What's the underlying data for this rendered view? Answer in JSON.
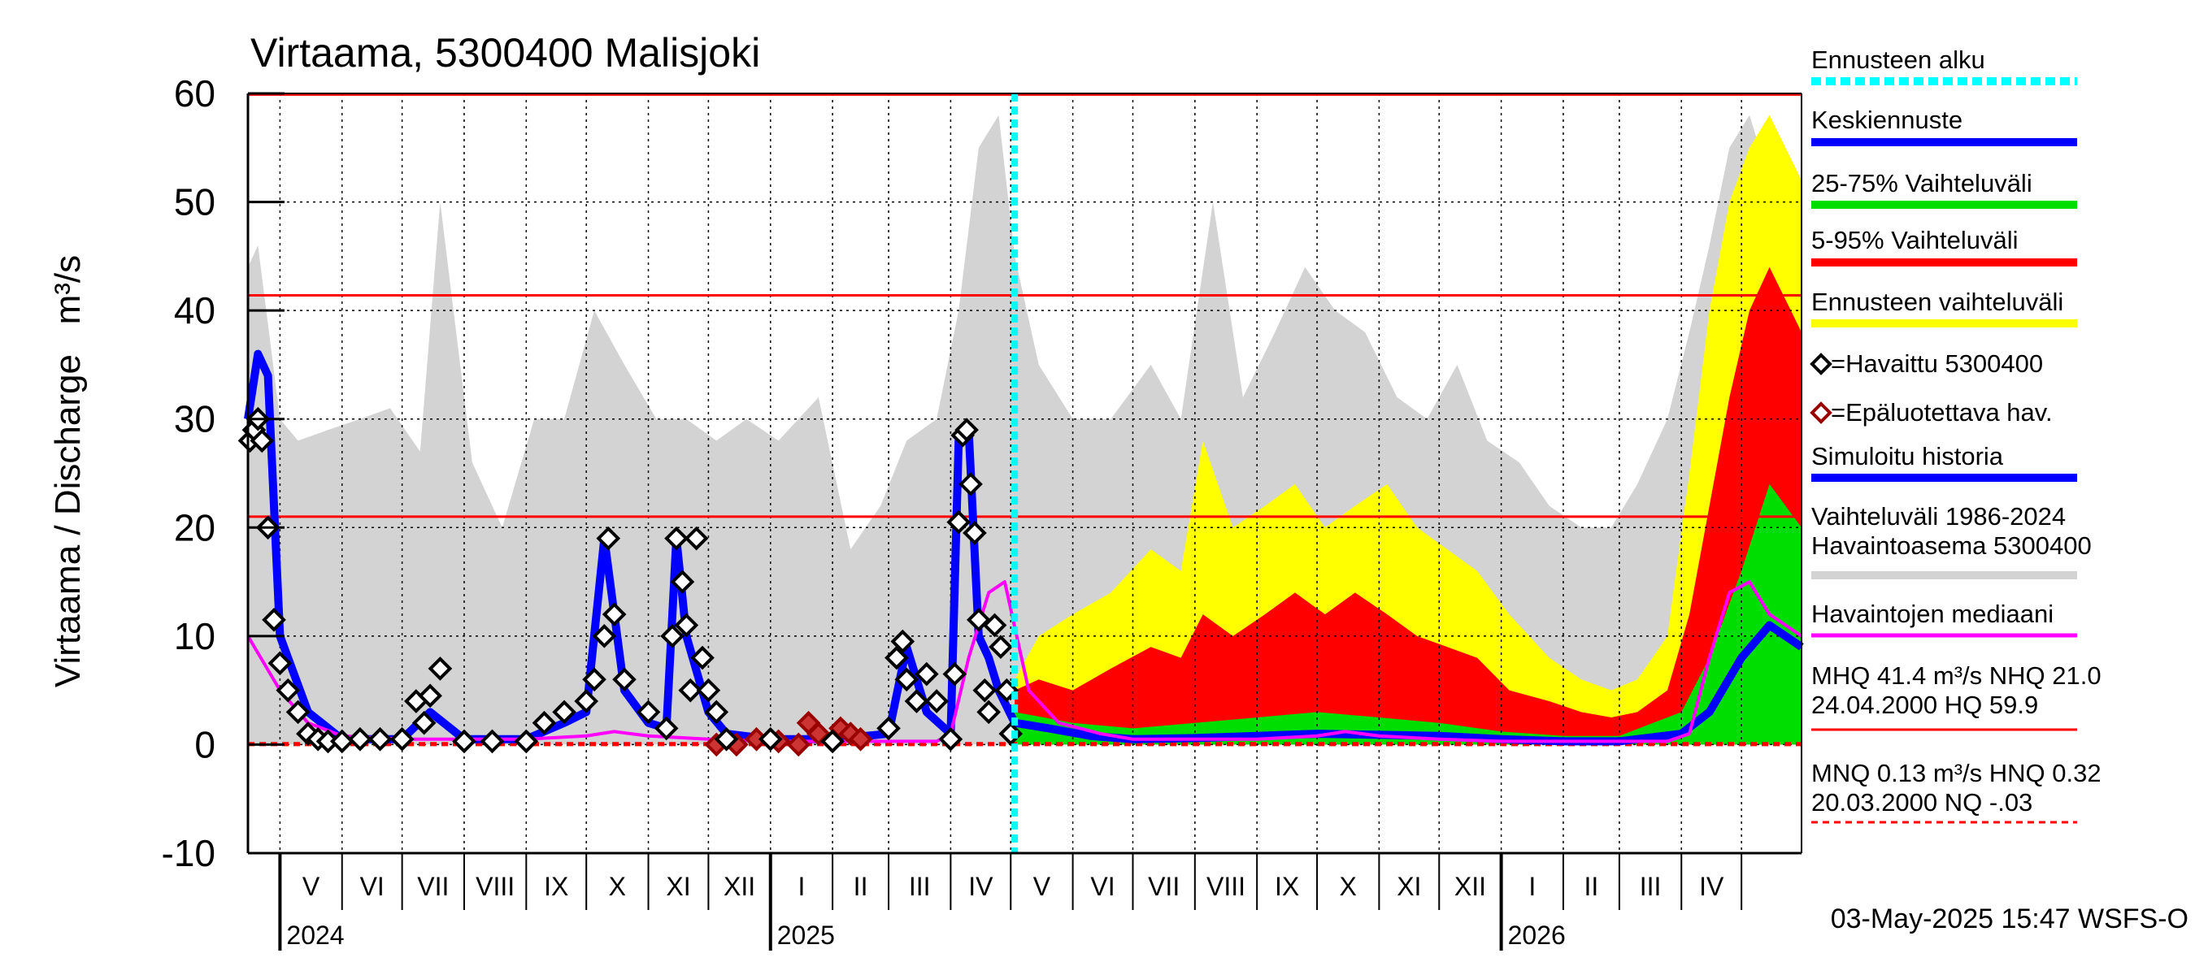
{
  "chart_data": {
    "type": "line",
    "title": "Virtaama, 5300400 Malisjoki",
    "ylabel": "Virtaama / Discharge   m³/s",
    "ylim": [
      -10,
      60
    ],
    "yticks": [
      "-10",
      "0",
      "10",
      "20",
      "30",
      "40",
      "50",
      "60"
    ],
    "ytick_values": [
      -10,
      0,
      10,
      20,
      30,
      40,
      50,
      60
    ],
    "grid": true,
    "legend_position": "right",
    "x_range": [
      "2024-04-15",
      "2026-05-31"
    ],
    "months": [
      {
        "label": "V",
        "date": "2024-05-01"
      },
      {
        "label": "VI",
        "date": "2024-06-01"
      },
      {
        "label": "VII",
        "date": "2024-07-01"
      },
      {
        "label": "VIII",
        "date": "2024-08-01"
      },
      {
        "label": "IX",
        "date": "2024-09-01"
      },
      {
        "label": "X",
        "date": "2024-10-01"
      },
      {
        "label": "XI",
        "date": "2024-11-01"
      },
      {
        "label": "XII",
        "date": "2024-12-01"
      },
      {
        "label": "I",
        "date": "2025-01-01"
      },
      {
        "label": "II",
        "date": "2025-02-01"
      },
      {
        "label": "III",
        "date": "2025-03-01"
      },
      {
        "label": "IV",
        "date": "2025-04-01"
      },
      {
        "label": "V",
        "date": "2025-05-01"
      },
      {
        "label": "VI",
        "date": "2025-06-01"
      },
      {
        "label": "VII",
        "date": "2025-07-01"
      },
      {
        "label": "VIII",
        "date": "2025-08-01"
      },
      {
        "label": "IX",
        "date": "2025-09-01"
      },
      {
        "label": "X",
        "date": "2025-10-01"
      },
      {
        "label": "XI",
        "date": "2025-11-01"
      },
      {
        "label": "XII",
        "date": "2025-12-01"
      },
      {
        "label": "I",
        "date": "2026-01-01"
      },
      {
        "label": "II",
        "date": "2026-02-01"
      },
      {
        "label": "III",
        "date": "2026-03-01"
      },
      {
        "label": "IV",
        "date": "2026-04-01"
      },
      {
        "label": "",
        "date": "2026-05-01"
      }
    ],
    "years": [
      {
        "label": "2024",
        "date": "2024-05-01"
      },
      {
        "label": "2025",
        "date": "2025-01-01"
      },
      {
        "label": "2026",
        "date": "2026-01-01"
      }
    ],
    "forecast_start": "2025-05-03",
    "reference_lines": [
      {
        "value": 59.9,
        "color": "#ff0000",
        "style": "solid"
      },
      {
        "value": 41.4,
        "color": "#ff0000",
        "style": "solid"
      },
      {
        "value": 21.0,
        "color": "#ff0000",
        "style": "solid"
      },
      {
        "value": 0.13,
        "color": "#ff0000",
        "style": "dashed"
      },
      {
        "value": -0.03,
        "color": "#ff0000",
        "style": "dashed"
      }
    ],
    "historical_range_envelope": {
      "color": "#d3d3d3",
      "x": [
        "2024-04-15",
        "2024-04-20",
        "2024-05-01",
        "2024-05-10",
        "2024-05-25",
        "2024-06-10",
        "2024-06-25",
        "2024-07-10",
        "2024-07-20",
        "2024-08-05",
        "2024-08-20",
        "2024-09-05",
        "2024-09-20",
        "2024-10-05",
        "2024-10-20",
        "2024-11-05",
        "2024-11-20",
        "2024-12-05",
        "2024-12-20",
        "2025-01-05",
        "2025-01-25",
        "2025-02-10",
        "2025-02-25",
        "2025-03-10",
        "2025-03-25",
        "2025-04-05",
        "2025-04-15",
        "2025-04-25",
        "2025-05-03",
        "2025-05-15",
        "2025-06-01",
        "2025-06-20",
        "2025-07-10",
        "2025-07-25",
        "2025-08-10",
        "2025-08-25",
        "2025-09-10",
        "2025-09-25",
        "2025-10-10",
        "2025-10-25",
        "2025-11-10",
        "2025-11-25",
        "2025-12-10",
        "2025-12-25",
        "2026-01-10",
        "2026-01-25",
        "2026-02-10",
        "2026-02-25",
        "2026-03-10",
        "2026-03-25",
        "2026-04-05",
        "2026-04-15",
        "2026-04-25",
        "2026-05-05",
        "2026-05-15",
        "2026-05-31"
      ],
      "y": [
        44,
        46,
        30,
        28,
        29,
        30,
        31,
        27,
        50,
        26,
        20,
        30,
        30,
        40,
        35,
        30,
        30,
        28,
        30,
        28,
        32,
        18,
        22,
        28,
        30,
        40,
        55,
        58,
        45,
        35,
        30,
        30,
        35,
        30,
        50,
        32,
        38,
        44,
        40,
        38,
        32,
        30,
        35,
        28,
        26,
        22,
        20,
        20,
        24,
        30,
        38,
        46,
        55,
        58,
        52,
        40
      ]
    },
    "series": [
      {
        "name": "Ennusteen vaihteluväli",
        "color": "#ffff00",
        "x": [
          "2025-05-03",
          "2025-05-15",
          "2025-06-01",
          "2025-06-20",
          "2025-07-10",
          "2025-07-25",
          "2025-08-05",
          "2025-08-20",
          "2025-09-05",
          "2025-09-20",
          "2025-10-05",
          "2025-10-20",
          "2025-11-05",
          "2025-11-20",
          "2025-12-05",
          "2025-12-20",
          "2026-01-05",
          "2026-01-25",
          "2026-02-10",
          "2026-02-25",
          "2026-03-10",
          "2026-03-25",
          "2026-04-05",
          "2026-04-15",
          "2026-04-25",
          "2026-05-05",
          "2026-05-15",
          "2026-05-31"
        ],
        "y": [
          6,
          10,
          12,
          14,
          18,
          16,
          28,
          20,
          22,
          24,
          20,
          22,
          24,
          20,
          18,
          16,
          12,
          8,
          6,
          5,
          6,
          10,
          25,
          40,
          50,
          55,
          58,
          52
        ]
      },
      {
        "name": "5-95% Vaihteluväli",
        "color": "#ff0000",
        "x": [
          "2025-05-03",
          "2025-05-15",
          "2025-06-01",
          "2025-06-20",
          "2025-07-10",
          "2025-07-25",
          "2025-08-05",
          "2025-08-20",
          "2025-09-05",
          "2025-09-20",
          "2025-10-05",
          "2025-10-20",
          "2025-11-05",
          "2025-11-20",
          "2025-12-05",
          "2025-12-20",
          "2026-01-05",
          "2026-01-25",
          "2026-02-10",
          "2026-02-25",
          "2026-03-10",
          "2026-03-25",
          "2026-04-05",
          "2026-04-15",
          "2026-04-25",
          "2026-05-05",
          "2026-05-15",
          "2026-05-31"
        ],
        "y": [
          5,
          6,
          5,
          7,
          9,
          8,
          12,
          10,
          12,
          14,
          12,
          14,
          12,
          10,
          9,
          8,
          5,
          4,
          3,
          2.5,
          3,
          5,
          12,
          22,
          32,
          40,
          44,
          38
        ]
      },
      {
        "name": "25-75% Vaihteluväli",
        "color": "#00dd00",
        "x": [
          "2025-05-03",
          "2025-06-01",
          "2025-07-01",
          "2025-08-01",
          "2025-09-01",
          "2025-10-01",
          "2025-11-01",
          "2025-12-01",
          "2026-01-01",
          "2026-02-01",
          "2026-03-01",
          "2026-04-01",
          "2026-04-15",
          "2026-05-01",
          "2026-05-15",
          "2026-05-31"
        ],
        "y": [
          3,
          2,
          1.5,
          2,
          2.5,
          3,
          2.5,
          2,
          1.2,
          0.8,
          0.8,
          3,
          8,
          16,
          24,
          20
        ]
      },
      {
        "name": "Keskiennuste",
        "color": "#0000ff",
        "x": [
          "2025-05-03",
          "2025-05-20",
          "2025-06-10",
          "2025-07-01",
          "2025-08-01",
          "2025-09-01",
          "2025-10-01",
          "2025-11-01",
          "2025-12-01",
          "2026-01-01",
          "2026-02-01",
          "2026-03-01",
          "2026-04-01",
          "2026-04-15",
          "2026-05-01",
          "2026-05-15",
          "2026-05-31"
        ],
        "y": [
          2,
          1.5,
          0.8,
          0.5,
          0.6,
          0.8,
          1,
          0.9,
          0.8,
          0.5,
          0.3,
          0.3,
          1,
          3,
          8,
          11,
          9
        ]
      },
      {
        "name": "Simuloitu historia",
        "color": "#0000ff",
        "x": [
          "2024-04-15",
          "2024-04-20",
          "2024-04-25",
          "2024-05-01",
          "2024-05-05",
          "2024-05-15",
          "2024-06-01",
          "2024-07-01",
          "2024-07-15",
          "2024-08-01",
          "2024-09-01",
          "2024-09-20",
          "2024-10-01",
          "2024-10-10",
          "2024-10-20",
          "2024-11-01",
          "2024-11-10",
          "2024-11-15",
          "2024-11-20",
          "2024-12-01",
          "2024-12-10",
          "2025-01-01",
          "2025-02-01",
          "2025-03-01",
          "2025-03-10",
          "2025-03-20",
          "2025-04-01",
          "2025-04-05",
          "2025-04-10",
          "2025-04-15",
          "2025-04-20",
          "2025-04-25",
          "2025-05-03"
        ],
        "y": [
          30,
          36,
          34,
          10,
          8,
          3,
          0.5,
          0.5,
          3,
          0.5,
          0.5,
          2,
          3,
          19,
          5,
          2,
          1.5,
          19,
          10,
          3,
          1,
          0.5,
          0.5,
          1,
          9,
          3,
          1,
          28,
          29,
          10,
          8,
          5,
          2
        ]
      },
      {
        "name": "Havaintojen mediaani",
        "color": "#ff00ff",
        "x": [
          "2024-04-15",
          "2024-05-01",
          "2024-05-15",
          "2024-06-01",
          "2024-07-01",
          "2024-08-01",
          "2024-09-01",
          "2024-10-01",
          "2024-10-15",
          "2024-11-01",
          "2024-12-01",
          "2025-01-01",
          "2025-02-01",
          "2025-03-01",
          "2025-03-25",
          "2025-04-01",
          "2025-04-10",
          "2025-04-20",
          "2025-04-28",
          "2025-05-10",
          "2025-05-25",
          "2025-06-15",
          "2025-07-01",
          "2025-08-01",
          "2025-09-01",
          "2025-10-01",
          "2025-10-15",
          "2025-11-01",
          "2025-12-01",
          "2026-01-01",
          "2026-02-01",
          "2026-03-01",
          "2026-03-25",
          "2026-04-05",
          "2026-04-15",
          "2026-04-25",
          "2026-05-05",
          "2026-05-15",
          "2026-05-31"
        ],
        "y": [
          10,
          5,
          2,
          0.8,
          0.5,
          0.5,
          0.5,
          0.8,
          1.2,
          0.8,
          0.5,
          0.3,
          0.3,
          0.3,
          0.3,
          1,
          8,
          14,
          15,
          5,
          2,
          1,
          0.5,
          0.5,
          0.5,
          0.8,
          1.2,
          0.8,
          0.5,
          0.3,
          0.3,
          0.3,
          0.3,
          1,
          8,
          14,
          15,
          12,
          10
        ]
      }
    ],
    "observations": {
      "name": "=Havaittu 5300400",
      "x": [
        "2024-04-16",
        "2024-04-18",
        "2024-04-20",
        "2024-04-22",
        "2024-04-25",
        "2024-04-28",
        "2024-05-01",
        "2024-05-05",
        "2024-05-10",
        "2024-05-15",
        "2024-05-20",
        "2024-05-25",
        "2024-06-01",
        "2024-06-10",
        "2024-06-20",
        "2024-07-01",
        "2024-07-08",
        "2024-07-12",
        "2024-07-15",
        "2024-07-20",
        "2024-08-01",
        "2024-08-15",
        "2024-09-01",
        "2024-09-10",
        "2024-09-20",
        "2024-10-01",
        "2024-10-05",
        "2024-10-10",
        "2024-10-12",
        "2024-10-15",
        "2024-10-20",
        "2024-11-01",
        "2024-11-10",
        "2024-11-13",
        "2024-11-15",
        "2024-11-18",
        "2024-11-20",
        "2024-11-22",
        "2024-11-25",
        "2024-11-28",
        "2024-12-01",
        "2024-12-05",
        "2024-12-10",
        "2025-01-01",
        "2025-02-01",
        "2025-03-01",
        "2025-03-05",
        "2025-03-08",
        "2025-03-10",
        "2025-03-15",
        "2025-03-20",
        "2025-03-25",
        "2025-04-01",
        "2025-04-03",
        "2025-04-05",
        "2025-04-07",
        "2025-04-09",
        "2025-04-11",
        "2025-04-13",
        "2025-04-15",
        "2025-04-18",
        "2025-04-20",
        "2025-04-23",
        "2025-04-26",
        "2025-04-29",
        "2025-05-01"
      ],
      "y": [
        28,
        29,
        30,
        28,
        20,
        11.5,
        7.5,
        5,
        3,
        1,
        0.5,
        0.3,
        0.3,
        0.5,
        0.5,
        0.5,
        4,
        2,
        4.5,
        7,
        0.3,
        0.3,
        0.3,
        2,
        3,
        4,
        6,
        10,
        19,
        12,
        6,
        3,
        1.5,
        10,
        19,
        15,
        11,
        5,
        19,
        8,
        5,
        3,
        0.5,
        0.5,
        0.3,
        1.5,
        8,
        9.5,
        6,
        4,
        6.5,
        4,
        0.5,
        6.5,
        20.5,
        28.5,
        29,
        24,
        19.5,
        11.5,
        5,
        3,
        11,
        9,
        5,
        1
      ]
    },
    "unreliable_observations": {
      "name": "=Epäluotettava hav.",
      "x": [
        "2024-12-05",
        "2024-12-15",
        "2024-12-25",
        "2025-01-05",
        "2025-01-15",
        "2025-01-20",
        "2025-01-25",
        "2025-02-05",
        "2025-02-10",
        "2025-02-15"
      ],
      "y": [
        0,
        0,
        0.5,
        0.3,
        0,
        2,
        1,
        1.5,
        1,
        0.5
      ]
    },
    "legend": [
      {
        "label": "Ennusteen alku",
        "color": "#00ffff",
        "style": "dotted"
      },
      {
        "label": "Keskiennuste",
        "color": "#0000ff",
        "style": "solid"
      },
      {
        "label": "25-75% Vaihteluväli",
        "color": "#00dd00",
        "style": "solid"
      },
      {
        "label": "5-95% Vaihteluväli",
        "color": "#ff0000",
        "style": "solid"
      },
      {
        "label": "Ennusteen vaihteluväli",
        "color": "#ffff00",
        "style": "solid"
      },
      {
        "label": "=Havaittu 5300400",
        "color": "#000000",
        "style": "diamond"
      },
      {
        "label": "=Epäluotettava hav.",
        "color": "#990000",
        "style": "diamond"
      },
      {
        "label": "Simuloitu historia",
        "color": "#0000ff",
        "style": "solid"
      },
      {
        "label": "Vaihteluväli 1986-2024\n Havaintoasema 5300400",
        "color": "#d3d3d3",
        "style": "solid"
      },
      {
        "label": "Havaintojen mediaani",
        "color": "#ff00ff",
        "style": "solid"
      },
      {
        "label": "MHQ 41.4 m³/s NHQ 21.0\n24.04.2000 HQ 59.9",
        "color": "#ff0000",
        "style": "solid"
      },
      {
        "label": "MNQ 0.13 m³/s HNQ 0.32\n20.03.2000 NQ -.03",
        "color": "#ff0000",
        "style": "dashed"
      }
    ],
    "footer": "03-May-2025 15:47 WSFS-O"
  }
}
